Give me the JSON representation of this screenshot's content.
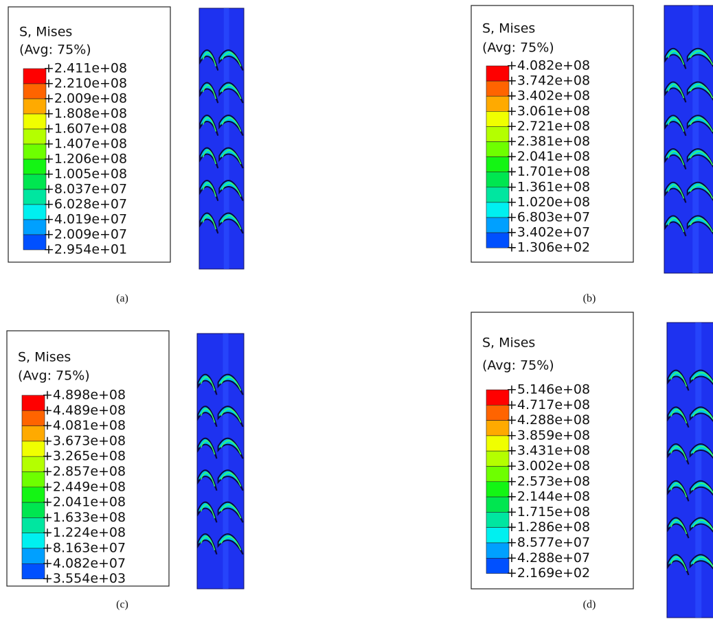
{
  "panels": [
    {
      "title": "S, Mises",
      "subtitle": "(Avg: 75%)",
      "caption": "(a)",
      "labels": [
        "+2.411e+08",
        "+2.210e+08",
        "+2.009e+08",
        "+1.808e+08",
        "+1.607e+08",
        "+1.407e+08",
        "+1.206e+08",
        "+1.005e+08",
        "+8.037e+07",
        "+6.028e+07",
        "+4.019e+07",
        "+2.009e+07",
        "+2.954e+01"
      ]
    },
    {
      "title": "S, Mises",
      "subtitle": "(Avg: 75%)",
      "caption": "(b)",
      "labels": [
        "+4.082e+08",
        "+3.742e+08",
        "+3.402e+08",
        "+3.061e+08",
        "+2.721e+08",
        "+2.381e+08",
        "+2.041e+08",
        "+1.701e+08",
        "+1.361e+08",
        "+1.020e+08",
        "+6.803e+07",
        "+3.402e+07",
        "+1.306e+02"
      ]
    },
    {
      "title": "S, Mises",
      "subtitle": "(Avg: 75%)",
      "caption": "(c)",
      "labels": [
        "+4.898e+08",
        "+4.489e+08",
        "+4.081e+08",
        "+3.673e+08",
        "+3.265e+08",
        "+2.857e+08",
        "+2.449e+08",
        "+2.041e+08",
        "+1.633e+08",
        "+1.224e+08",
        "+8.163e+07",
        "+4.082e+07",
        "+3.554e+03"
      ]
    },
    {
      "title": "S, Mises",
      "subtitle": "(Avg: 75%)",
      "caption": "(d)",
      "labels": [
        "+5.146e+08",
        "+4.717e+08",
        "+4.288e+08",
        "+3.859e+08",
        "+3.431e+08",
        "+3.002e+08",
        "+2.573e+08",
        "+2.144e+08",
        "+1.715e+08",
        "+1.286e+08",
        "+8.577e+07",
        "+4.288e+07",
        "+2.169e+02"
      ]
    }
  ]
}
